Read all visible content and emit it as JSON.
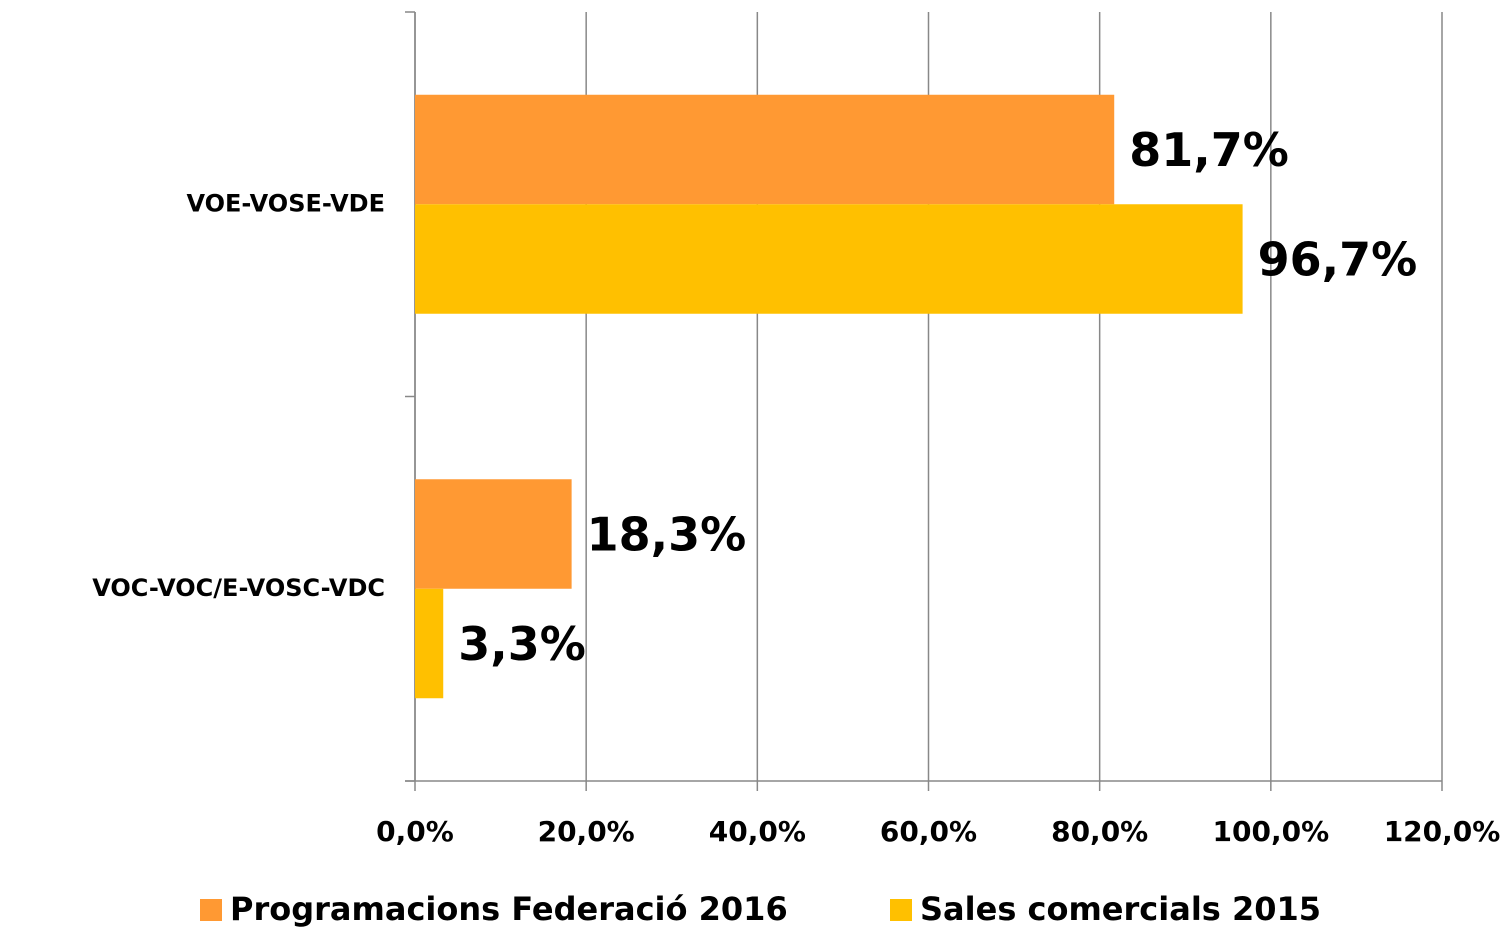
{
  "chart_data": {
    "type": "hbar",
    "categories": [
      "VOE-VOSE-VDE",
      "VOC-VOC/E-VOSC-VDC"
    ],
    "series": [
      {
        "name": "Programacions Federació 2016",
        "color": "#ff9933",
        "values": [
          81.7,
          18.3
        ],
        "value_labels": [
          "81,7%",
          "18,3%"
        ]
      },
      {
        "name": "Sales comercials 2015",
        "color": "#ffc000",
        "values": [
          96.7,
          3.3
        ],
        "value_labels": [
          "96,7%",
          "3,3%"
        ]
      }
    ],
    "xlim": [
      0,
      120
    ],
    "xticks": [
      {
        "value": 0,
        "label": "0,0%"
      },
      {
        "value": 20,
        "label": "20,0%"
      },
      {
        "value": 40,
        "label": "40,0%"
      },
      {
        "value": 60,
        "label": "60,0%"
      },
      {
        "value": 80,
        "label": "80,0%"
      },
      {
        "value": 100,
        "label": "100,0%"
      },
      {
        "value": 120,
        "label": "120,0%"
      }
    ],
    "grid": true,
    "legend": "bottom"
  }
}
